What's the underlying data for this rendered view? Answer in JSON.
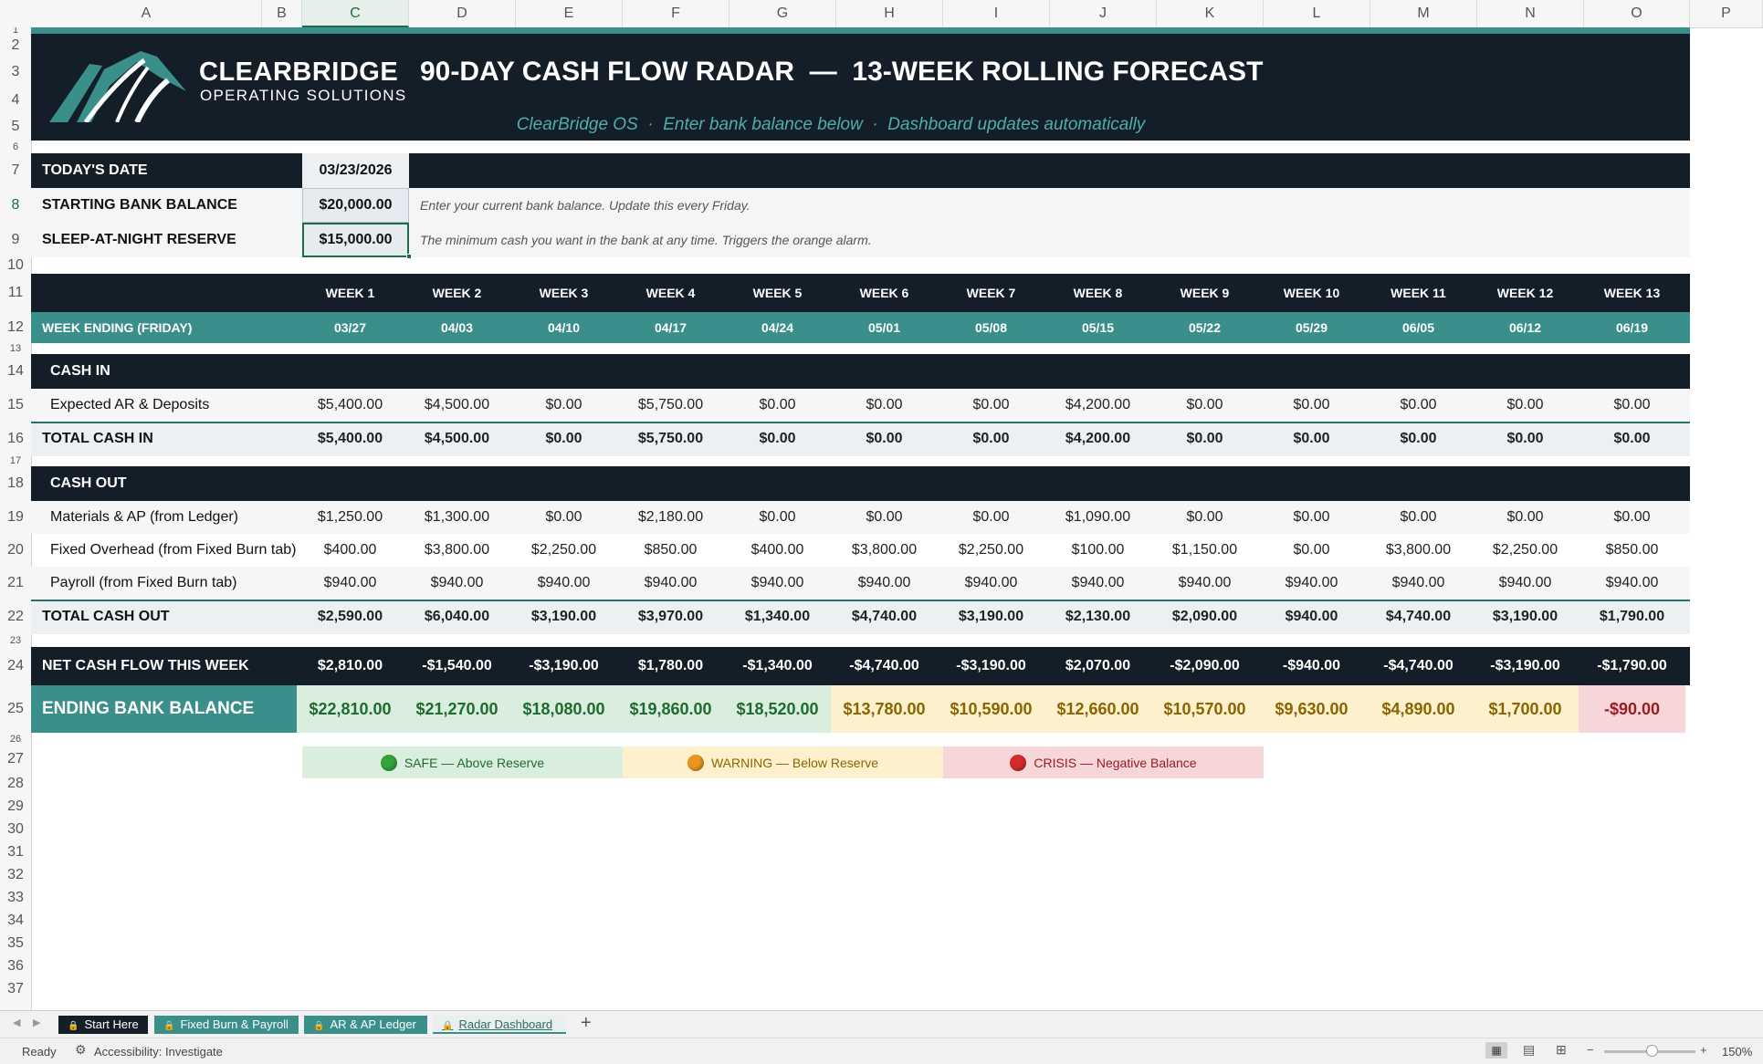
{
  "columns": [
    "A",
    "B",
    "C",
    "D",
    "E",
    "F",
    "G",
    "H",
    "I",
    "J",
    "K",
    "L",
    "M",
    "N",
    "O",
    "P"
  ],
  "rows": [
    "1",
    "2",
    "3",
    "4",
    "5",
    "6",
    "7",
    "8",
    "9",
    "10",
    "11",
    "12",
    "13",
    "14",
    "15",
    "16",
    "17",
    "18",
    "19",
    "20",
    "21",
    "22",
    "23",
    "24",
    "25",
    "26",
    "27",
    "28",
    "29",
    "30",
    "31",
    "32",
    "33",
    "34",
    "35",
    "36",
    "37"
  ],
  "brand": {
    "name": "CLEARBRIDGE",
    "sub": "OPERATING SOLUTIONS"
  },
  "title": "90-DAY CASH FLOW RADAR  —  13-WEEK ROLLING FORECAST",
  "subtitle": "ClearBridge OS  ·  Enter bank balance below  ·  Dashboard updates automatically",
  "inputs": {
    "date_label": "TODAY'S DATE",
    "date_value": "03/23/2026",
    "balance_label": "STARTING BANK BALANCE",
    "balance_value": "$20,000.00",
    "balance_note": "Enter your current bank balance. Update this every Friday.",
    "reserve_label": "SLEEP-AT-NIGHT RESERVE",
    "reserve_value": "$15,000.00",
    "reserve_note": "The minimum cash you want in the bank at any time. Triggers the orange alarm."
  },
  "weeks": [
    "WEEK 1",
    "WEEK 2",
    "WEEK 3",
    "WEEK 4",
    "WEEK 5",
    "WEEK 6",
    "WEEK 7",
    "WEEK 8",
    "WEEK 9",
    "WEEK 10",
    "WEEK 11",
    "WEEK 12",
    "WEEK 13"
  ],
  "week_ending_label": "WEEK ENDING (FRIDAY)",
  "week_endings": [
    "03/27",
    "04/03",
    "04/10",
    "04/17",
    "04/24",
    "05/01",
    "05/08",
    "05/15",
    "05/22",
    "05/29",
    "06/05",
    "06/12",
    "06/19"
  ],
  "cash_in": {
    "header": "CASH IN",
    "rows": [
      {
        "label": "Expected AR & Deposits",
        "values": [
          "$5,400.00",
          "$4,500.00",
          "$0.00",
          "$5,750.00",
          "$0.00",
          "$0.00",
          "$0.00",
          "$4,200.00",
          "$0.00",
          "$0.00",
          "$0.00",
          "$0.00",
          "$0.00"
        ]
      }
    ],
    "total_label": "TOTAL CASH IN",
    "totals": [
      "$5,400.00",
      "$4,500.00",
      "$0.00",
      "$5,750.00",
      "$0.00",
      "$0.00",
      "$0.00",
      "$4,200.00",
      "$0.00",
      "$0.00",
      "$0.00",
      "$0.00",
      "$0.00"
    ]
  },
  "cash_out": {
    "header": "CASH OUT",
    "rows": [
      {
        "label": "Materials & AP (from Ledger)",
        "values": [
          "$1,250.00",
          "$1,300.00",
          "$0.00",
          "$2,180.00",
          "$0.00",
          "$0.00",
          "$0.00",
          "$1,090.00",
          "$0.00",
          "$0.00",
          "$0.00",
          "$0.00",
          "$0.00"
        ]
      },
      {
        "label": "Fixed Overhead (from Fixed Burn tab)",
        "values": [
          "$400.00",
          "$3,800.00",
          "$2,250.00",
          "$850.00",
          "$400.00",
          "$3,800.00",
          "$2,250.00",
          "$100.00",
          "$1,150.00",
          "$0.00",
          "$3,800.00",
          "$2,250.00",
          "$850.00"
        ]
      },
      {
        "label": "Payroll (from Fixed Burn tab)",
        "values": [
          "$940.00",
          "$940.00",
          "$940.00",
          "$940.00",
          "$940.00",
          "$940.00",
          "$940.00",
          "$940.00",
          "$940.00",
          "$940.00",
          "$940.00",
          "$940.00",
          "$940.00"
        ]
      }
    ],
    "total_label": "TOTAL CASH OUT",
    "totals": [
      "$2,590.00",
      "$6,040.00",
      "$3,190.00",
      "$3,970.00",
      "$1,340.00",
      "$4,740.00",
      "$3,190.00",
      "$2,130.00",
      "$2,090.00",
      "$940.00",
      "$4,740.00",
      "$3,190.00",
      "$1,790.00"
    ]
  },
  "net": {
    "label": "NET CASH FLOW THIS WEEK",
    "values": [
      "$2,810.00",
      "-$1,540.00",
      "-$3,190.00",
      "$1,780.00",
      "-$1,340.00",
      "-$4,740.00",
      "-$3,190.00",
      "$2,070.00",
      "-$2,090.00",
      "-$940.00",
      "-$4,740.00",
      "-$3,190.00",
      "-$1,790.00"
    ]
  },
  "ending": {
    "label": "ENDING BANK BALANCE",
    "values": [
      "$22,810.00",
      "$21,270.00",
      "$18,080.00",
      "$19,860.00",
      "$18,520.00",
      "$13,780.00",
      "$10,590.00",
      "$12,660.00",
      "$10,570.00",
      "$9,630.00",
      "$4,890.00",
      "$1,700.00",
      "-$90.00"
    ],
    "status": [
      "safe",
      "safe",
      "safe",
      "safe",
      "safe",
      "warning",
      "warning",
      "warning",
      "warning",
      "warning",
      "warning",
      "warning",
      "crisis"
    ]
  },
  "legend": [
    {
      "label": "SAFE — Above Reserve",
      "status": "safe"
    },
    {
      "label": "WARNING — Below Reserve",
      "status": "warning"
    },
    {
      "label": "CRISIS — Negative Balance",
      "status": "crisis"
    }
  ],
  "colors": {
    "navy": "#141e28",
    "teal": "#3a8f8a",
    "safe_bg": "#d9eedf",
    "safe_fg": "#1f6b2e",
    "warning_bg": "#fcf1cc",
    "warning_fg": "#8a6400",
    "crisis_bg": "#f6d6d8",
    "crisis_fg": "#9b1b22"
  },
  "sheet_tabs": [
    {
      "label": "Start Here"
    },
    {
      "label": "Fixed Burn & Payroll"
    },
    {
      "label": "AR & AP Ledger"
    },
    {
      "label": "Radar Dashboard",
      "active": true
    }
  ],
  "status_bar": {
    "ready": "Ready",
    "accessibility": "Accessibility: Investigate",
    "zoom": "150%"
  }
}
